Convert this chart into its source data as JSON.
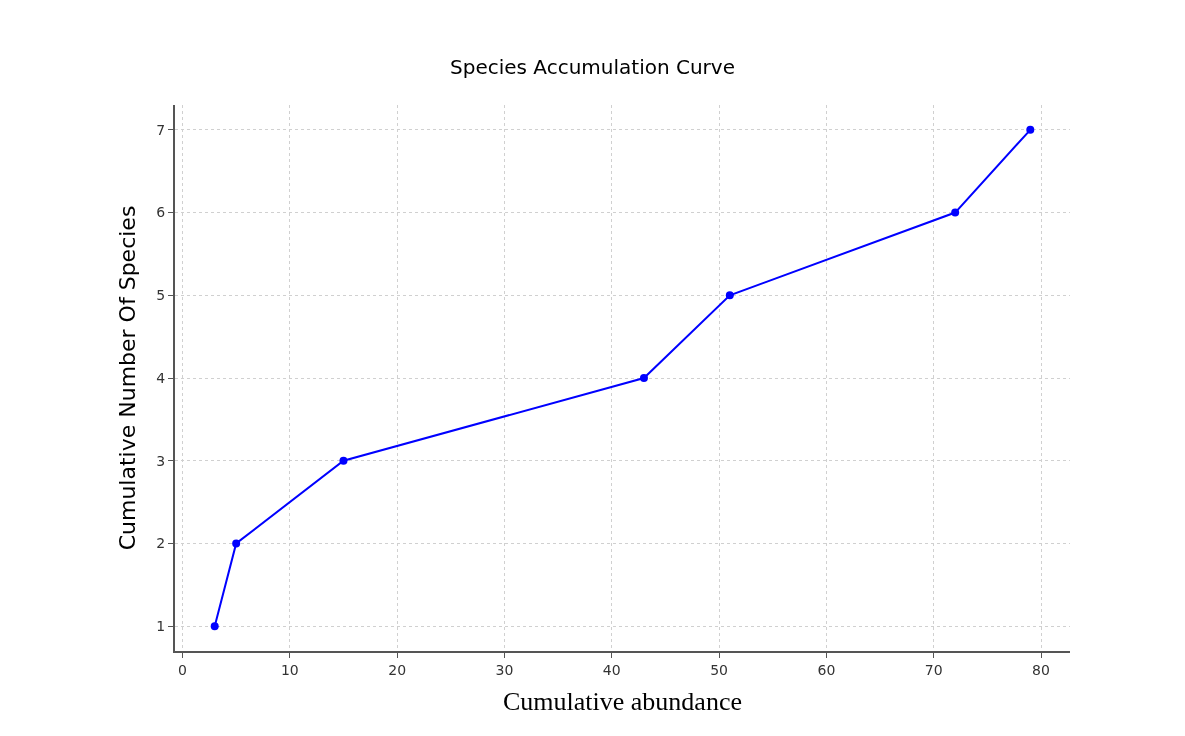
{
  "chart_data": {
    "type": "line",
    "title": "Species Accumulation Curve",
    "xlabel": "Cumulative abundance",
    "ylabel": "Cumulative Number Of Species",
    "x": [
      3,
      5,
      15,
      43,
      51,
      72,
      79
    ],
    "series": [
      {
        "color": "#0000ff",
        "values": [
          1,
          2,
          3,
          4,
          5,
          6,
          7
        ]
      }
    ],
    "xlim": [
      -0.7,
      82.7
    ],
    "xticks": [
      0,
      10,
      20,
      30,
      40,
      50,
      60,
      70,
      80
    ],
    "ylim": [
      0.7,
      7.3
    ],
    "yticks": [
      1,
      2,
      3,
      4,
      5,
      6,
      7
    ],
    "grid": true,
    "marker": "circle",
    "line_style": "solid"
  }
}
